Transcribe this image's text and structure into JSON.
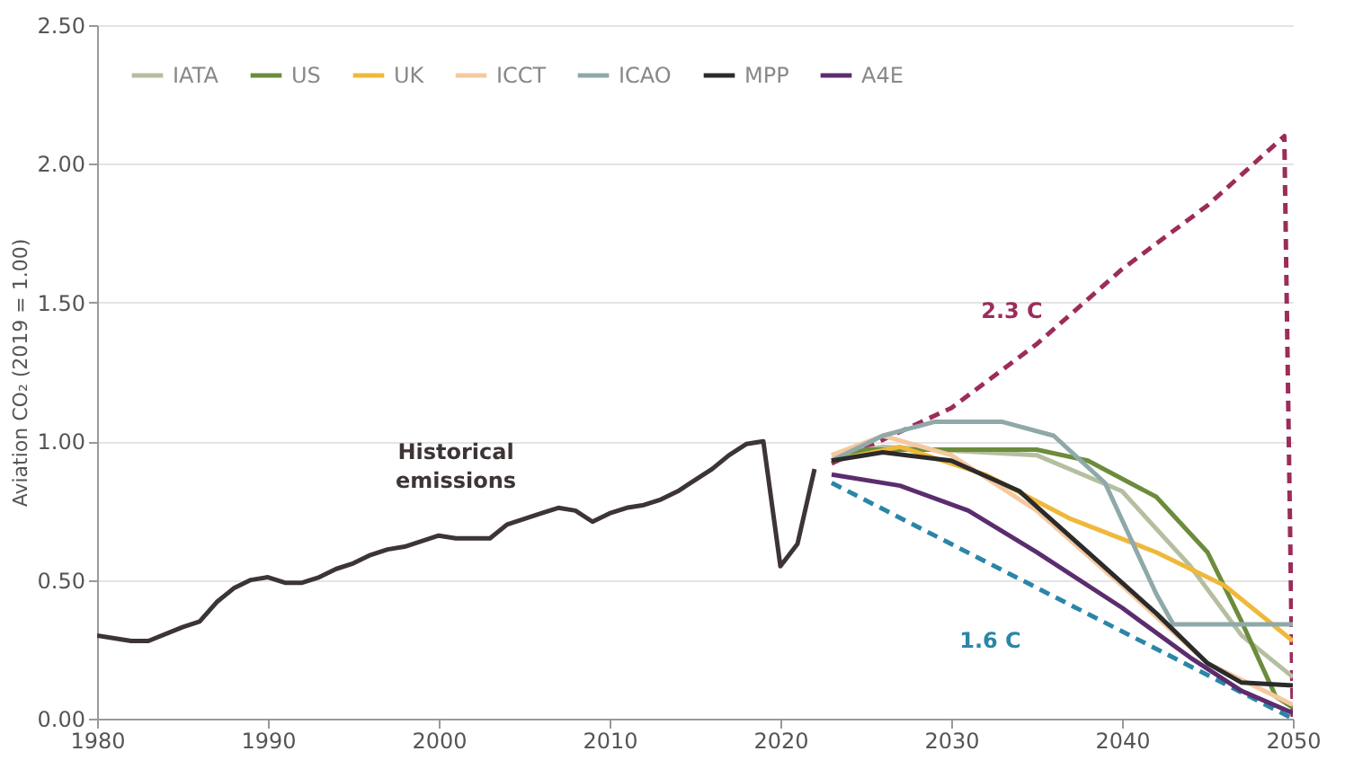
{
  "chart_data": {
    "type": "line",
    "ylabel": "Aviation CO₂ (2019 = 1.00)",
    "xlim": [
      1980,
      2050
    ],
    "xticks": [
      1980,
      1990,
      2000,
      2010,
      2020,
      2030,
      2040,
      2050
    ],
    "ylim": [
      0,
      2.5
    ],
    "yticks": [
      {
        "value": 0,
        "label": "0.00"
      },
      {
        "value": 0.5,
        "label": "0.50"
      },
      {
        "value": 1,
        "label": "1.00"
      },
      {
        "value": 1.5,
        "label": "1.50"
      },
      {
        "value": 2,
        "label": "2.00"
      },
      {
        "value": 2.5,
        "label": "2.50"
      }
    ],
    "grid": "y",
    "legend": "top left",
    "marker": "none",
    "annotations": [
      "Historical\nemissions",
      "2.3 C",
      "1.6 C"
    ],
    "series": [
      {
        "color": "#3d3535",
        "x": [
          1980,
          1982,
          1983,
          1985,
          1986,
          1987,
          1988,
          1989,
          1990,
          1991,
          1992,
          1993,
          1994,
          1995,
          1996,
          1997,
          1998,
          1999,
          2000,
          2001,
          2002,
          2003,
          2004,
          2005,
          2006,
          2007,
          2008,
          2009,
          2010,
          2011,
          2012,
          2013,
          2014,
          2015,
          2016,
          2017,
          2018,
          2019,
          2020,
          2021,
          2022
        ],
        "values": [
          0.3,
          0.28,
          0.28,
          0.33,
          0.35,
          0.42,
          0.47,
          0.5,
          0.51,
          0.49,
          0.49,
          0.51,
          0.54,
          0.56,
          0.59,
          0.61,
          0.62,
          0.64,
          0.66,
          0.65,
          0.65,
          0.65,
          0.7,
          0.72,
          0.74,
          0.76,
          0.75,
          0.71,
          0.74,
          0.76,
          0.77,
          0.79,
          0.82,
          0.86,
          0.9,
          0.95,
          0.99,
          1.0,
          0.55,
          0.63,
          0.9
        ]
      },
      {
        "color": "#9b2d5a",
        "line_style": "dashed",
        "x": [
          2023,
          2030,
          2035,
          2040,
          2045,
          2049.5,
          2050
        ],
        "values": [
          0.92,
          1.12,
          1.35,
          1.62,
          1.85,
          2.1,
          0.0
        ]
      },
      {
        "color": "#2a86a8",
        "line_style": "dashed",
        "x": [
          2023,
          2050
        ],
        "values": [
          0.85,
          0.0
        ]
      },
      {
        "name": "IATA",
        "color": "#b5bfa0",
        "x": [
          2023,
          2026,
          2035,
          2040,
          2044,
          2047,
          2050
        ],
        "values": [
          0.95,
          0.98,
          0.95,
          0.82,
          0.55,
          0.3,
          0.15
        ]
      },
      {
        "name": "US",
        "color": "#6c8c3c",
        "x": [
          2023,
          2025,
          2035,
          2038,
          2042,
          2045,
          2047,
          2049,
          2050
        ],
        "values": [
          0.93,
          0.97,
          0.97,
          0.93,
          0.8,
          0.6,
          0.35,
          0.08,
          0.04
        ]
      },
      {
        "name": "UK",
        "color": "#f0b83a",
        "x": [
          2023,
          2027,
          2032,
          2037,
          2042,
          2046,
          2050
        ],
        "values": [
          0.93,
          0.98,
          0.88,
          0.72,
          0.6,
          0.48,
          0.28
        ]
      },
      {
        "name": "ICCT",
        "color": "#f5c9a0",
        "x": [
          2023,
          2026,
          2030,
          2035,
          2040,
          2045,
          2050
        ],
        "values": [
          0.95,
          1.02,
          0.95,
          0.75,
          0.48,
          0.2,
          0.05
        ]
      },
      {
        "name": "ICAO",
        "color": "#8fa9a9",
        "x": [
          2023,
          2026,
          2029,
          2033,
          2036,
          2039,
          2042,
          2043,
          2050
        ],
        "values": [
          0.93,
          1.02,
          1.07,
          1.07,
          1.02,
          0.85,
          0.45,
          0.34,
          0.34
        ]
      },
      {
        "name": "MPP",
        "color": "#2b2b2b",
        "x": [
          2023,
          2026,
          2030,
          2034,
          2038,
          2042,
          2045,
          2047,
          2050
        ],
        "values": [
          0.93,
          0.96,
          0.93,
          0.82,
          0.6,
          0.38,
          0.2,
          0.13,
          0.12
        ]
      },
      {
        "name": "A4E",
        "color": "#5b2d6e",
        "x": [
          2023,
          2027,
          2031,
          2035,
          2040,
          2044,
          2047,
          2050
        ],
        "values": [
          0.88,
          0.84,
          0.75,
          0.6,
          0.4,
          0.22,
          0.1,
          0.02
        ]
      }
    ]
  }
}
